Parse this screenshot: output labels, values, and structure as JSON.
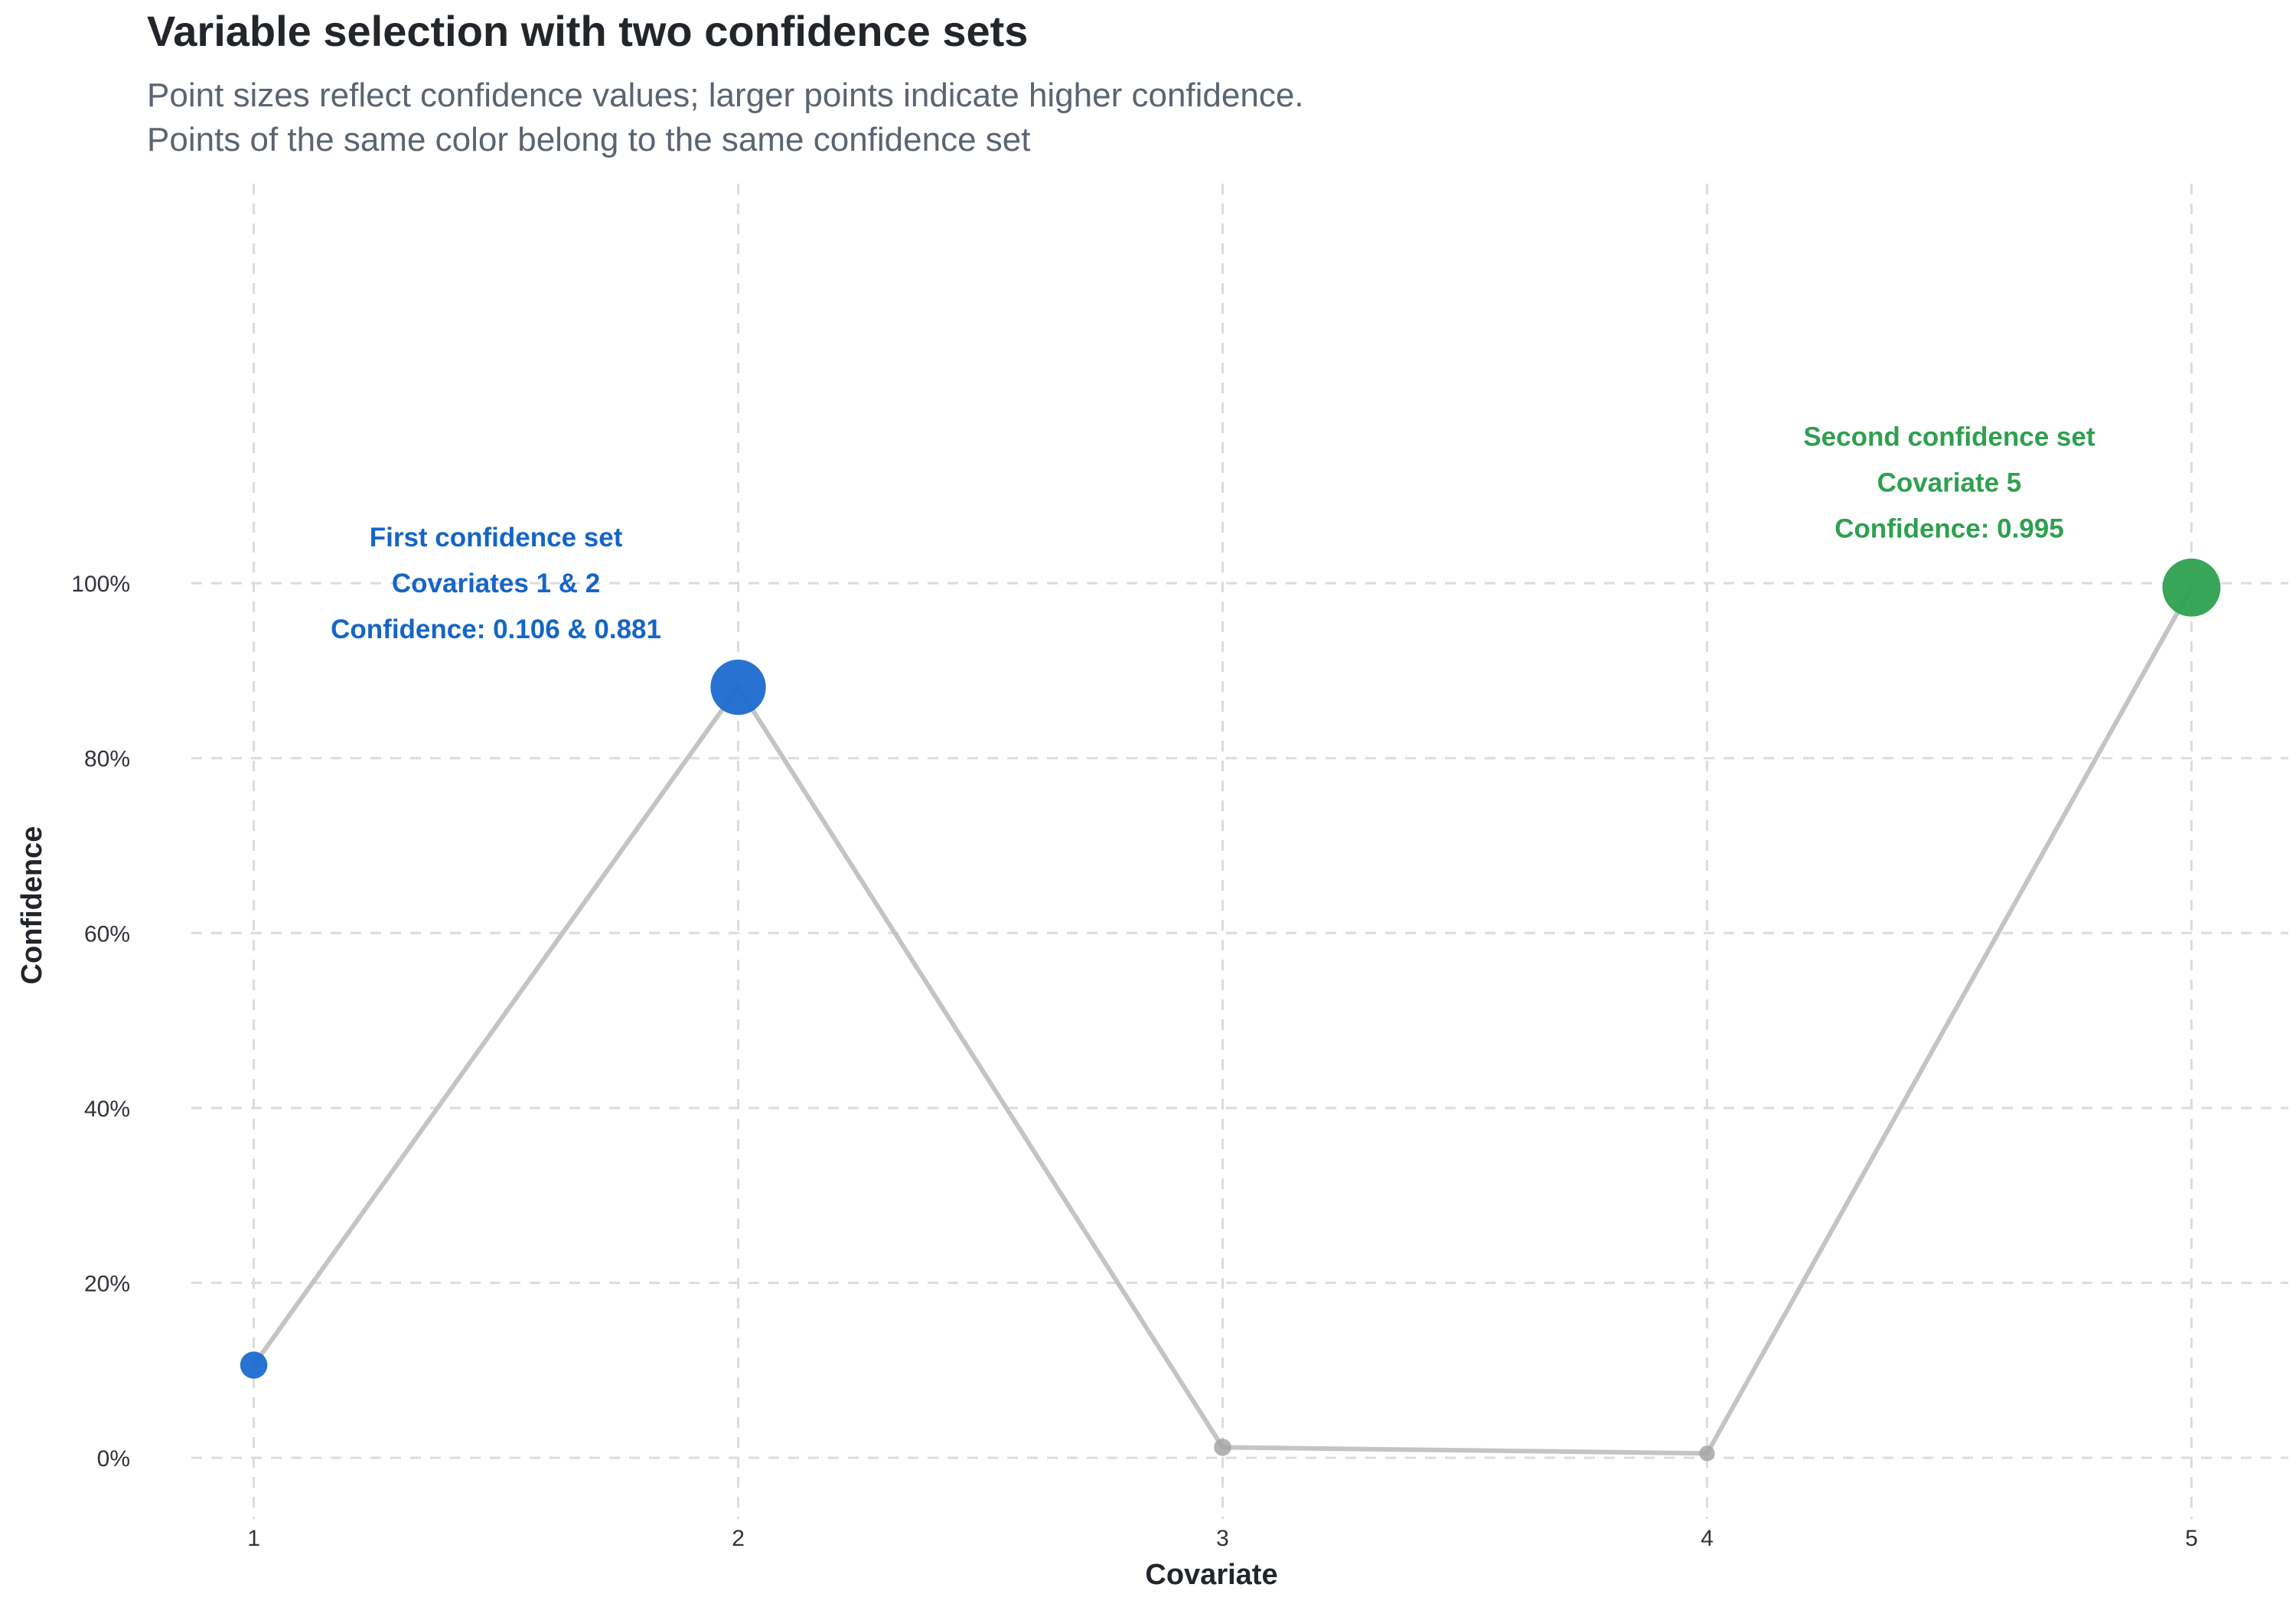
{
  "chart_data": {
    "type": "scatter",
    "title": "Variable selection with two confidence sets",
    "subtitle": [
      "Point sizes reflect confidence values; larger points indicate higher confidence.",
      "Points of the same color belong to the same confidence set"
    ],
    "xlabel": "Covariate",
    "ylabel": "Confidence",
    "x": [
      1,
      2,
      3,
      4,
      5
    ],
    "x_tick_labels": [
      "1",
      "2",
      "3",
      "4",
      "5"
    ],
    "xlim": [
      0.8,
      5.2
    ],
    "ylim": [
      -0.07,
      1.47
    ],
    "y_ticks": [
      0,
      0.2,
      0.4,
      0.6,
      0.8,
      1.0
    ],
    "y_tick_labels": [
      "0%",
      "20%",
      "40%",
      "60%",
      "80%",
      "100%"
    ],
    "grid": true,
    "grid_style": "dashed",
    "line_color": "#c4c4c4",
    "points": [
      {
        "x": 1,
        "y": 0.106,
        "set": "first"
      },
      {
        "x": 2,
        "y": 0.881,
        "set": "first"
      },
      {
        "x": 3,
        "y": 0.012,
        "set": "none"
      },
      {
        "x": 4,
        "y": 0.005,
        "set": "none"
      },
      {
        "x": 5,
        "y": 0.995,
        "set": "second"
      }
    ],
    "set_colors": {
      "first": "#1c6ccf",
      "second": "#2ea04f",
      "none": "#a6a6a6"
    },
    "annotations": [
      {
        "set": "first",
        "color": "#1565c7",
        "x": 1.5,
        "y": 1.0,
        "lines": [
          "First confidence set",
          "Covariates 1 & 2",
          "Confidence: 0.106 & 0.881"
        ]
      },
      {
        "set": "second",
        "color": "#2ea04f",
        "x": 4.5,
        "y": 1.115,
        "lines": [
          "Second confidence set",
          "Covariate 5",
          "Confidence: 0.995"
        ]
      }
    ]
  }
}
